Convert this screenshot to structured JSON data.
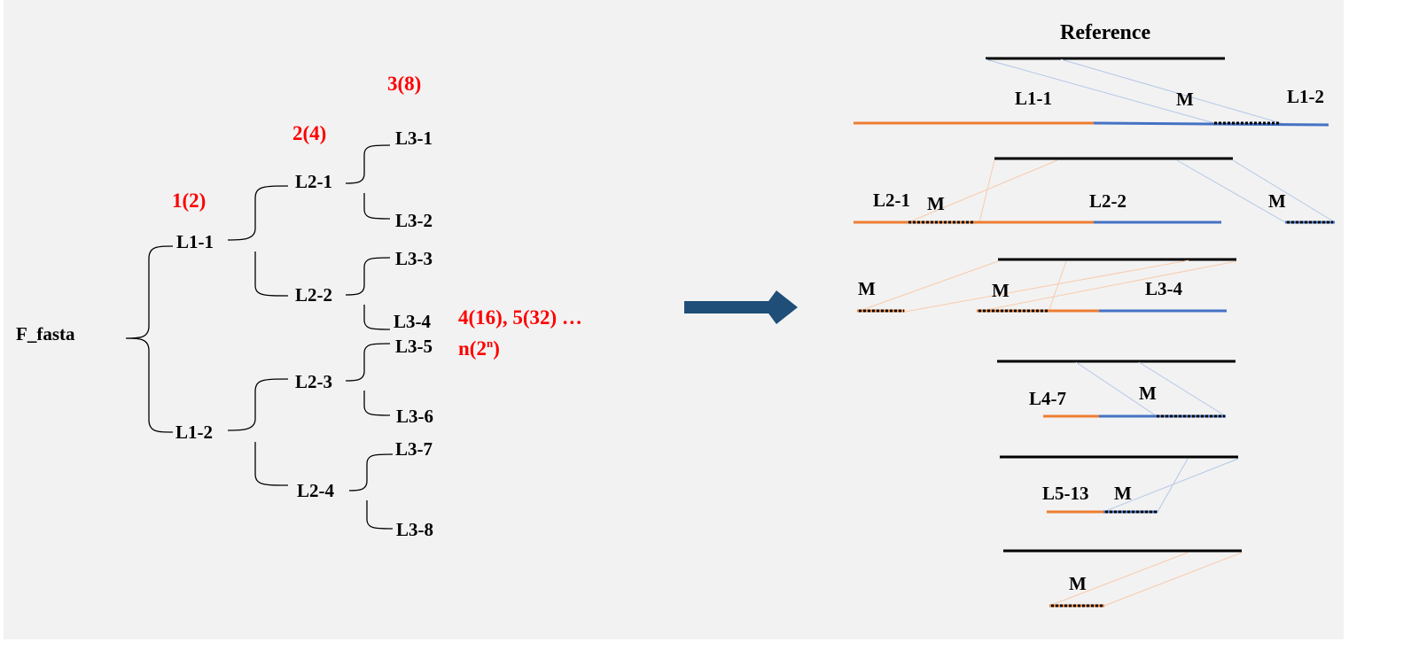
{
  "tree": {
    "root": "F_fasta",
    "level_counts": [
      "1(2)",
      "2(4)",
      "3(8)"
    ],
    "more_levels": "4(16), 5(32) …",
    "general_prefix": "n(2",
    "general_exp": "n",
    "general_suffix": ")",
    "level1": [
      "L1-1",
      "L1-2"
    ],
    "level2": [
      "L2-1",
      "L2-2",
      "L2-3",
      "L2-4"
    ],
    "level3": [
      "L3-1",
      "L3-2",
      "L3-3",
      "L3-4",
      "L3-5",
      "L3-6",
      "L3-7",
      "L3-8"
    ]
  },
  "alignment": {
    "title": "Reference",
    "row1": [
      "L1-1",
      "M",
      "L1-2"
    ],
    "row2": [
      "L2-1",
      "M",
      "L2-2",
      "M"
    ],
    "row3": [
      "M",
      "M",
      "L3-4"
    ],
    "row4": [
      "L4-7",
      "M"
    ],
    "row5": [
      "L5-13",
      "M"
    ],
    "row6": [
      "M"
    ]
  },
  "colors": {
    "label_red": "#ff0000",
    "arrow": "#1f4e79",
    "segment_orange": "#ed7d31",
    "segment_blue": "#4472c4",
    "reference": "#000000"
  }
}
